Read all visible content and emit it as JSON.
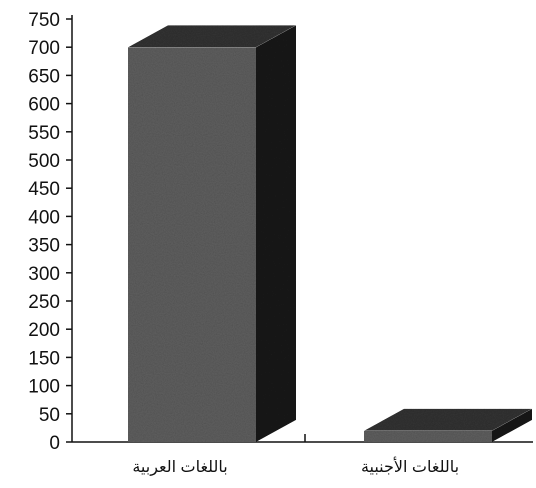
{
  "chart_data": {
    "type": "bar",
    "style": "3d",
    "title": "",
    "xlabel": "",
    "ylabel": "",
    "categories": [
      "باللغات العربية",
      "باللغات الأجنبية"
    ],
    "values": [
      700,
      20
    ],
    "ylim": [
      0,
      750
    ],
    "yticks": [
      0,
      50,
      100,
      150,
      200,
      250,
      300,
      350,
      400,
      450,
      500,
      550,
      600,
      650,
      700,
      750
    ],
    "grid": false,
    "legend": "none",
    "colors": {
      "bar_front": "#5f5f5f",
      "bar_side": "#1a1a1a",
      "bar_top": "#333333",
      "axis": "#111111"
    }
  }
}
